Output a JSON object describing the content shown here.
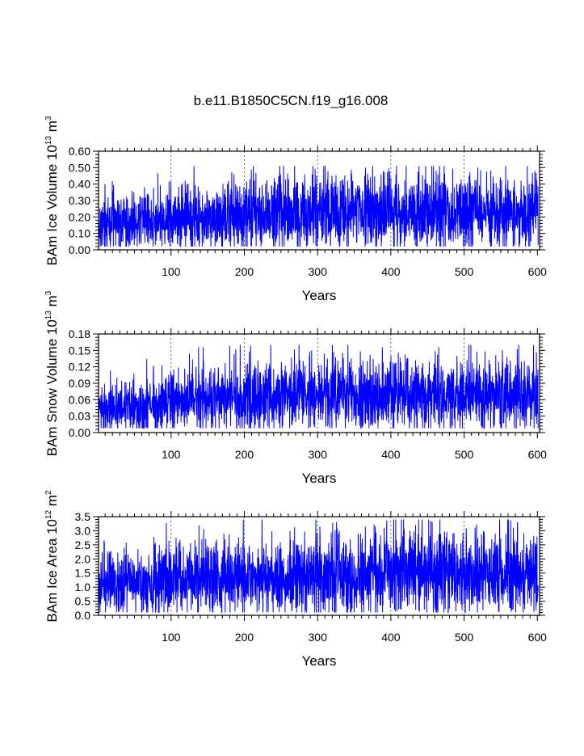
{
  "title": "b.e11.B1850C5CN.f19_g16.008",
  "colors": {
    "series": "#0000ff",
    "axis": "#000000",
    "grid": "#000000"
  },
  "chart_data": [
    {
      "type": "line",
      "title": "",
      "xlabel": "Years",
      "ylabel": {
        "main": "BAm Ice Volume 10",
        "exp1": "13",
        "mid": " m",
        "exp2": "3"
      },
      "xlim": [
        1,
        603
      ],
      "ylim": [
        0,
        0.6
      ],
      "xticks": [
        100,
        200,
        300,
        400,
        500,
        600
      ],
      "xtick_labels": [
        "100",
        "200",
        "300",
        "400",
        "500",
        "600"
      ],
      "yticks": [
        0,
        0.1,
        0.2,
        0.3,
        0.4,
        0.5,
        0.6
      ],
      "ytick_labels": [
        "0.00",
        "0.10",
        "0.20",
        "0.30",
        "0.40",
        "0.50",
        "0.60"
      ],
      "grid": "dashed vertical at major x ticks",
      "series": [
        {
          "color": "#0000ff",
          "mean_by_century": [
            [
              0,
              0.15
            ],
            [
              100,
              0.19
            ],
            [
              200,
              0.22
            ],
            [
              300,
              0.23
            ],
            [
              400,
              0.23
            ],
            [
              500,
              0.23
            ],
            [
              600,
              0.23
            ]
          ],
          "min": 0.02,
          "max": 0.51
        }
      ]
    },
    {
      "type": "line",
      "title": "",
      "xlabel": "Years",
      "ylabel": {
        "main": "BAm Snow Volume 10",
        "exp1": "13",
        "mid": " m",
        "exp2": "3"
      },
      "xlim": [
        1,
        603
      ],
      "ylim": [
        0,
        0.18
      ],
      "xticks": [
        100,
        200,
        300,
        400,
        500,
        600
      ],
      "xtick_labels": [
        "100",
        "200",
        "300",
        "400",
        "500",
        "600"
      ],
      "yticks": [
        0,
        0.03,
        0.06,
        0.09,
        0.12,
        0.15,
        0.18
      ],
      "ytick_labels": [
        "0.00",
        "0.03",
        "0.06",
        "0.09",
        "0.12",
        "0.15",
        "0.18"
      ],
      "grid": "dashed vertical at major x ticks",
      "series": [
        {
          "color": "#0000ff",
          "mean_by_century": [
            [
              0,
              0.042
            ],
            [
              100,
              0.055
            ],
            [
              200,
              0.063
            ],
            [
              300,
              0.068
            ],
            [
              400,
              0.067
            ],
            [
              500,
              0.066
            ],
            [
              600,
              0.066
            ]
          ],
          "min": 0.008,
          "max": 0.16
        }
      ]
    },
    {
      "type": "line",
      "title": "",
      "xlabel": "Years",
      "ylabel": {
        "main": "BAm Ice Area 10",
        "exp1": "12",
        "mid": " m",
        "exp2": "2"
      },
      "xlim": [
        1,
        603
      ],
      "ylim": [
        0,
        3.5
      ],
      "xticks": [
        100,
        200,
        300,
        400,
        500,
        600
      ],
      "xtick_labels": [
        "100",
        "200",
        "300",
        "400",
        "500",
        "600"
      ],
      "yticks": [
        0,
        0.5,
        1.0,
        1.5,
        2.0,
        2.5,
        3.0,
        3.5
      ],
      "ytick_labels": [
        "0.0",
        "0.5",
        "1.0",
        "1.5",
        "2.0",
        "2.5",
        "3.0",
        "3.5"
      ],
      "grid": "dashed vertical at major x ticks",
      "series": [
        {
          "color": "#0000ff",
          "mean_by_century": [
            [
              0,
              1.1
            ],
            [
              100,
              1.25
            ],
            [
              200,
              1.35
            ],
            [
              300,
              1.45
            ],
            [
              400,
              1.45
            ],
            [
              500,
              1.45
            ],
            [
              600,
              1.45
            ]
          ],
          "min": 0.1,
          "max": 3.4
        }
      ]
    }
  ]
}
